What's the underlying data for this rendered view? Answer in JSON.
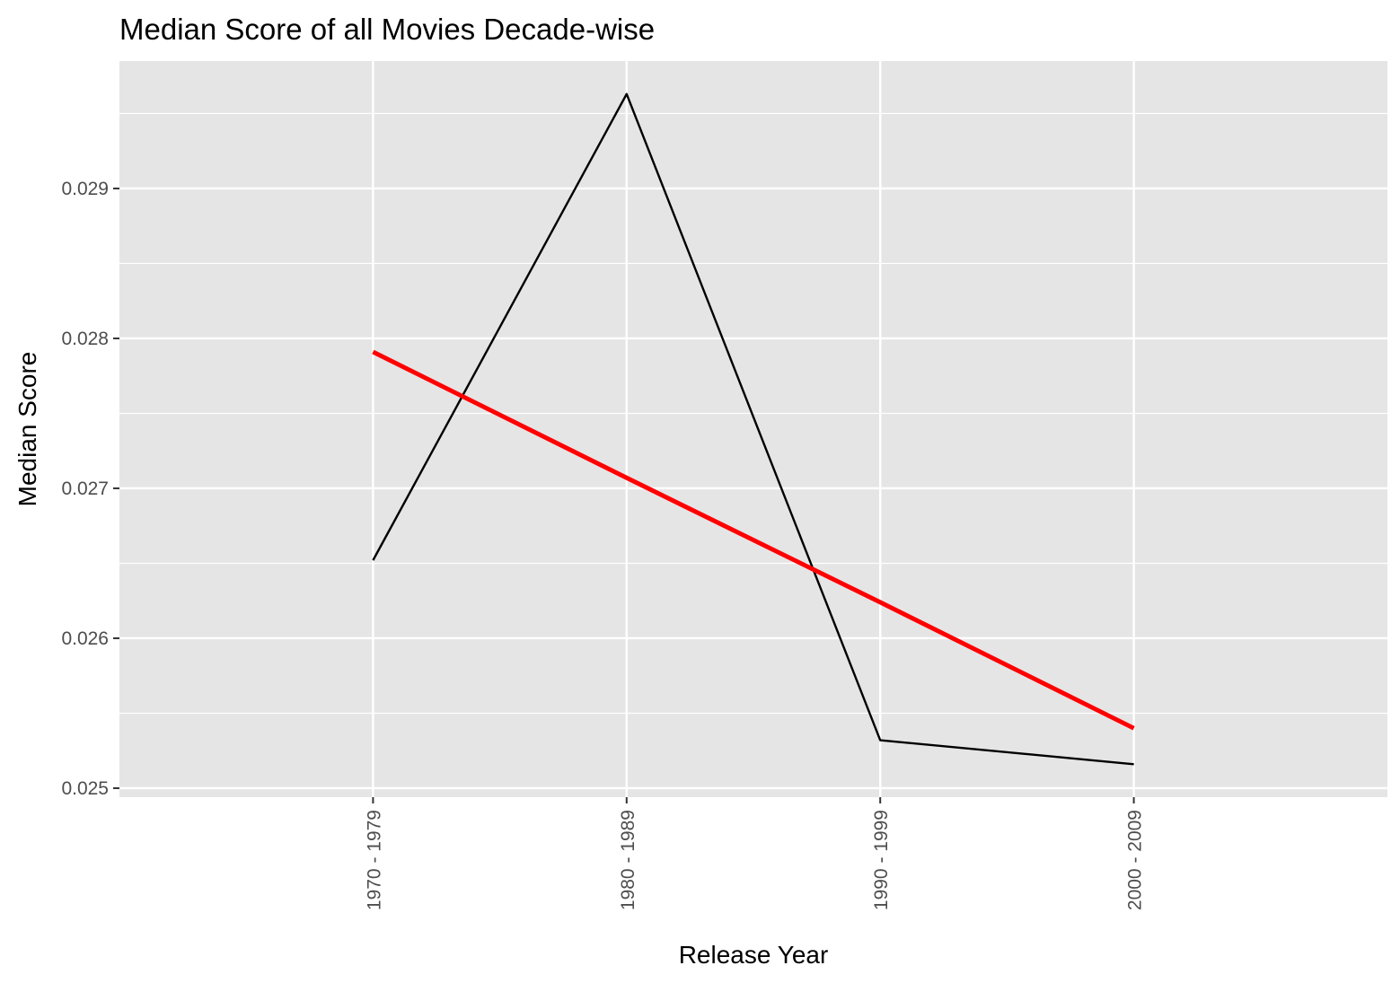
{
  "chart_data": {
    "type": "line",
    "title": "Median Score of all Movies Decade-wise",
    "xlabel": "Release Year",
    "ylabel": "Median Score",
    "categories": [
      "1970 - 1979",
      "1980 - 1989",
      "1990 - 1999",
      "2000 - 2009"
    ],
    "series": [
      {
        "values": [
          0.02652,
          0.02963,
          0.02532,
          0.02516
        ],
        "color": "#000000"
      },
      {
        "values": [
          0.02791,
          0.02707,
          0.02624,
          0.0254
        ],
        "color": "#ff0000"
      }
    ],
    "ylim": [
      0.02494,
      0.02985
    ],
    "yticks": [
      0.025,
      0.026,
      0.027,
      0.028,
      0.029
    ],
    "ytick_labels": [
      "0.025",
      "0.026",
      "0.027",
      "0.028",
      "0.029"
    ],
    "grid": true,
    "legend": "none",
    "panel_color": "#e5e5e5",
    "grid_color": "#ffffff"
  }
}
